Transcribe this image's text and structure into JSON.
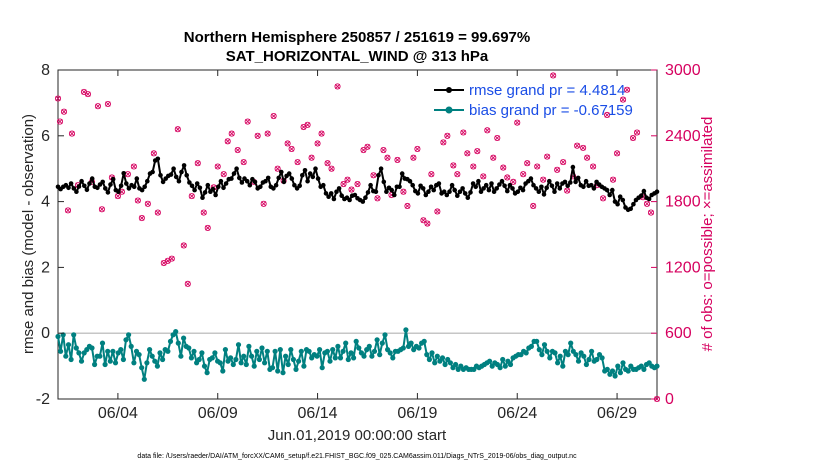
{
  "chart_data": {
    "type": "line",
    "title": "Northern Hemisphere 250857 / 251619 = 99.697%",
    "subtitle": "SAT_HORIZONTAL_WIND @ 313 hPa",
    "xlabel": "Jun.01,2019 00:00:00 start",
    "ylabel": "rmse and bias (model - observation)",
    "y2label": "# of obs: o=possible; ×=assimilated",
    "xlim": [
      1.0,
      31.0
    ],
    "ylim": [
      -2,
      8
    ],
    "y2lim": [
      0,
      3000
    ],
    "x_ticks": [
      {
        "value": 4,
        "label": "06/04"
      },
      {
        "value": 9,
        "label": "06/09"
      },
      {
        "value": 14,
        "label": "06/14"
      },
      {
        "value": 19,
        "label": "06/19"
      },
      {
        "value": 24,
        "label": "06/24"
      },
      {
        "value": 29,
        "label": "06/29"
      }
    ],
    "y_ticks": [
      -2,
      0,
      2,
      4,
      6,
      8
    ],
    "y2_ticks": [
      0,
      600,
      1200,
      1800,
      2400,
      3000
    ],
    "zero_line": 0,
    "legend_position": "top-right",
    "series": [
      {
        "name": "rmse grand pr = 4.4814",
        "axis": "left",
        "color": "#000000",
        "marker": "star",
        "values": [
          4.45,
          4.38,
          4.45,
          4.5,
          4.42,
          4.55,
          4.4,
          4.3,
          4.46,
          4.62,
          4.48,
          4.36,
          4.55,
          4.7,
          4.45,
          4.42,
          4.52,
          4.6,
          4.4,
          4.28,
          4.52,
          4.68,
          4.35,
          4.3,
          4.48,
          4.86,
          4.55,
          4.4,
          4.5,
          4.45,
          4.7,
          4.4,
          4.35,
          4.45,
          4.62,
          4.85,
          4.9,
          5.25,
          5.3,
          4.8,
          4.6,
          4.7,
          4.78,
          4.82,
          5.0,
          4.75,
          4.62,
          4.9,
          5.1,
          4.8,
          4.58,
          4.48,
          4.35,
          4.55,
          4.42,
          4.12,
          4.28,
          4.5,
          4.3,
          4.38,
          4.2,
          4.45,
          4.62,
          4.42,
          4.55,
          4.68,
          4.7,
          4.85,
          5.0,
          4.72,
          4.58,
          4.7,
          4.62,
          4.5,
          4.68,
          4.6,
          4.4,
          4.45,
          4.58,
          4.62,
          4.72,
          4.45,
          4.4,
          4.5,
          4.72,
          4.9,
          4.6,
          4.78,
          4.85,
          4.7,
          4.5,
          4.4,
          4.48,
          4.8,
          4.95,
          4.62,
          4.85,
          4.75,
          5.0,
          4.7,
          4.45,
          4.5,
          4.25,
          4.15,
          4.25,
          4.08,
          4.3,
          4.4,
          4.18,
          4.08,
          4.12,
          4.05,
          4.18,
          4.2,
          4.1,
          4.05,
          4.0,
          4.12,
          4.28,
          4.5,
          4.32,
          4.3,
          4.8,
          5.0,
          4.6,
          4.3,
          4.42,
          4.35,
          4.2,
          4.45,
          4.45,
          4.85,
          4.7,
          4.68,
          4.62,
          4.5,
          4.32,
          4.25,
          4.48,
          4.4,
          4.2,
          4.3,
          4.45,
          4.35,
          4.5,
          4.55,
          4.25,
          4.3,
          4.2,
          4.3,
          4.5,
          4.35,
          4.18,
          4.3,
          4.4,
          4.25,
          4.12,
          4.28,
          4.55,
          4.45,
          4.62,
          4.3,
          4.4,
          4.5,
          4.35,
          4.55,
          4.3,
          4.4,
          4.52,
          4.62,
          4.48,
          4.32,
          4.5,
          4.4,
          4.25,
          4.3,
          4.42,
          4.35,
          4.55,
          4.62,
          4.7,
          4.5,
          4.4,
          4.3,
          4.45,
          4.22,
          4.42,
          4.62,
          4.48,
          4.3,
          4.55,
          4.4,
          4.55,
          4.6,
          4.48,
          4.58,
          5.05,
          4.6,
          4.72,
          4.5,
          4.45,
          4.62,
          4.48,
          4.5,
          4.4,
          4.6,
          4.52,
          4.45,
          4.4,
          4.35,
          4.2,
          4.35,
          4.0,
          3.92,
          4.15,
          4.05,
          3.82,
          3.75,
          3.78,
          3.92,
          4.05,
          4.12,
          4.18,
          4.32,
          4.12,
          4.08,
          4.2,
          4.25,
          4.3
        ]
      },
      {
        "name": "bias grand pr = -0.67159",
        "axis": "left",
        "color": "#008080",
        "marker": "dot",
        "values": [
          -0.1,
          -0.55,
          -0.05,
          -0.7,
          -0.35,
          -0.8,
          -0.05,
          -0.45,
          -0.6,
          -0.85,
          -0.6,
          -0.5,
          -0.4,
          -0.45,
          -0.95,
          -0.7,
          -0.7,
          -0.3,
          -0.95,
          -0.55,
          -0.85,
          -0.55,
          -0.9,
          -0.6,
          -0.5,
          -0.8,
          -0.2,
          -0.05,
          -0.4,
          -0.9,
          -0.55,
          -0.65,
          -1.05,
          -1.4,
          -0.9,
          -0.5,
          -0.7,
          -0.85,
          -1.0,
          -0.6,
          -0.8,
          -0.5,
          -0.55,
          -0.25,
          -0.05,
          0.05,
          -0.3,
          -0.7,
          -0.15,
          -0.4,
          -0.45,
          -0.75,
          -0.55,
          -0.9,
          -0.8,
          -0.6,
          -1.0,
          -1.2,
          -0.8,
          -0.75,
          -0.6,
          -0.85,
          -0.9,
          -1.15,
          -0.5,
          -0.85,
          -0.75,
          -0.95,
          -0.8,
          -0.35,
          -0.9,
          -0.7,
          -0.95,
          -0.4,
          -0.7,
          -1.0,
          -0.55,
          -0.8,
          -0.45,
          -0.9,
          -0.55,
          -1.1,
          -1.05,
          -0.55,
          -1.15,
          -0.5,
          -1.2,
          -0.7,
          -0.95,
          -0.5,
          -0.8,
          -1.1,
          -0.85,
          -0.55,
          -1.0,
          -0.5,
          -0.55,
          -0.75,
          -0.65,
          -0.7,
          -0.5,
          -1.05,
          -0.6,
          -0.55,
          -0.85,
          -0.5,
          -0.75,
          -0.4,
          -0.75,
          -0.55,
          -0.3,
          -0.8,
          -0.6,
          -0.75,
          -0.25,
          -0.45,
          -0.6,
          -0.7,
          -0.5,
          -0.4,
          -0.7,
          -0.55,
          -0.2,
          -0.65,
          -0.3,
          -0.05,
          -0.5,
          -0.6,
          -0.75,
          -0.55,
          -0.55,
          -0.5,
          -0.45,
          0.1,
          -0.4,
          -0.3,
          -0.5,
          -0.4,
          -0.45,
          -0.3,
          -0.25,
          -0.65,
          -0.8,
          -0.6,
          -0.9,
          -0.7,
          -0.85,
          -0.75,
          -0.95,
          -0.8,
          -0.9,
          -1.05,
          -0.95,
          -1.1,
          -1.0,
          -1.1,
          -1.05,
          -1.1,
          -1.1,
          -1.1,
          -1.0,
          -1.05,
          -1.0,
          -0.95,
          -0.9,
          -0.85,
          -1.0,
          -0.9,
          -0.95,
          -1.05,
          -0.8,
          -1.0,
          -0.85,
          -0.95,
          -0.75,
          -0.7,
          -0.65,
          -0.65,
          -0.55,
          -0.6,
          -0.45,
          -0.4,
          -0.25,
          -0.25,
          -0.5,
          -0.65,
          -0.35,
          -0.55,
          -0.75,
          -0.55,
          -0.6,
          -0.9,
          -0.7,
          -1.0,
          -0.55,
          -0.65,
          -0.3,
          -0.55,
          -0.65,
          -0.85,
          -0.6,
          -0.7,
          -0.95,
          -0.8,
          -0.55,
          -0.85,
          -0.8,
          -0.65,
          -0.75,
          -1.15,
          -1.1,
          -1.25,
          -1.15,
          -1.3,
          -1.0,
          -1.2,
          -0.9,
          -1.1,
          -1.15,
          -1.0,
          -1.1,
          -1.1,
          -1.05,
          -1.0,
          -1.1,
          -0.95,
          -0.9,
          -1.0,
          -1.05,
          -1.0
        ]
      }
    ],
    "obs_counts": {
      "axis": "right",
      "color": "#d6005f",
      "possible": [
        [
          1.0,
          2740
        ],
        [
          1.1,
          2530
        ],
        [
          1.3,
          2620
        ],
        [
          1.5,
          1720
        ],
        [
          1.7,
          2420
        ],
        [
          2.0,
          1950
        ],
        [
          2.3,
          2800
        ],
        [
          2.5,
          2780
        ],
        [
          2.7,
          1980
        ],
        [
          3.0,
          2670
        ],
        [
          3.2,
          1730
        ],
        [
          3.5,
          2690
        ],
        [
          3.7,
          2020
        ],
        [
          4.0,
          1850
        ],
        [
          4.2,
          1890
        ],
        [
          4.5,
          2050
        ],
        [
          4.8,
          2120
        ],
        [
          5.0,
          1810
        ],
        [
          5.2,
          1650
        ],
        [
          5.5,
          1780
        ],
        [
          5.8,
          2240
        ],
        [
          6.0,
          1700
        ],
        [
          6.3,
          1240
        ],
        [
          6.5,
          1260
        ],
        [
          6.7,
          1280
        ],
        [
          7.0,
          2460
        ],
        [
          7.3,
          1400
        ],
        [
          7.5,
          1050
        ],
        [
          7.7,
          1850
        ],
        [
          8.0,
          2150
        ],
        [
          8.3,
          1700
        ],
        [
          8.5,
          1560
        ],
        [
          8.8,
          1930
        ],
        [
          9.0,
          2120
        ],
        [
          9.3,
          2050
        ],
        [
          9.5,
          2350
        ],
        [
          9.7,
          2420
        ],
        [
          10.0,
          2270
        ],
        [
          10.3,
          2160
        ],
        [
          10.5,
          2530
        ],
        [
          10.8,
          1980
        ],
        [
          11.0,
          2400
        ],
        [
          11.3,
          1780
        ],
        [
          11.5,
          2420
        ],
        [
          11.8,
          2580
        ],
        [
          12.0,
          2100
        ],
        [
          12.3,
          1990
        ],
        [
          12.5,
          2330
        ],
        [
          12.7,
          2280
        ],
        [
          13.0,
          2160
        ],
        [
          13.3,
          2480
        ],
        [
          13.5,
          2500
        ],
        [
          13.7,
          2200
        ],
        [
          14.0,
          2330
        ],
        [
          14.2,
          2420
        ],
        [
          14.5,
          2150
        ],
        [
          14.7,
          2100
        ],
        [
          15.0,
          2850
        ],
        [
          15.3,
          1960
        ],
        [
          15.5,
          2000
        ],
        [
          15.7,
          1910
        ],
        [
          16.0,
          1960
        ],
        [
          16.3,
          2270
        ],
        [
          16.5,
          2300
        ],
        [
          16.8,
          2040
        ],
        [
          17.0,
          1830
        ],
        [
          17.3,
          2270
        ],
        [
          17.5,
          2200
        ],
        [
          17.7,
          1860
        ],
        [
          18.0,
          2180
        ],
        [
          18.3,
          1890
        ],
        [
          18.5,
          1760
        ],
        [
          18.8,
          2200
        ],
        [
          19.0,
          2280
        ],
        [
          19.3,
          1630
        ],
        [
          19.5,
          1600
        ],
        [
          19.7,
          2050
        ],
        [
          20.0,
          1710
        ],
        [
          20.3,
          2340
        ],
        [
          20.5,
          2400
        ],
        [
          20.8,
          2130
        ],
        [
          21.0,
          2050
        ],
        [
          21.3,
          2430
        ],
        [
          21.5,
          2240
        ],
        [
          21.8,
          2120
        ],
        [
          22.0,
          2260
        ],
        [
          22.3,
          2030
        ],
        [
          22.5,
          2450
        ],
        [
          22.8,
          2200
        ],
        [
          23.0,
          2380
        ],
        [
          23.3,
          2110
        ],
        [
          23.5,
          2020
        ],
        [
          23.8,
          1980
        ],
        [
          24.0,
          2520
        ],
        [
          24.3,
          2050
        ],
        [
          24.5,
          2150
        ],
        [
          24.8,
          1760
        ],
        [
          25.0,
          2120
        ],
        [
          25.3,
          2000
        ],
        [
          25.5,
          2210
        ],
        [
          25.8,
          2950
        ],
        [
          26.0,
          2090
        ],
        [
          26.3,
          2160
        ],
        [
          26.5,
          1900
        ],
        [
          26.8,
          2030
        ],
        [
          27.0,
          2310
        ],
        [
          27.3,
          2290
        ],
        [
          27.5,
          2200
        ],
        [
          27.8,
          2120
        ],
        [
          28.0,
          1950
        ],
        [
          28.3,
          1830
        ],
        [
          28.5,
          2590
        ],
        [
          28.8,
          2000
        ],
        [
          29.0,
          2240
        ],
        [
          29.3,
          2730
        ],
        [
          29.5,
          2820
        ],
        [
          29.8,
          2380
        ],
        [
          30.0,
          2430
        ],
        [
          30.3,
          1840
        ],
        [
          30.5,
          1780
        ],
        [
          30.7,
          1700
        ],
        [
          31.0,
          0
        ]
      ]
    },
    "legend": [
      {
        "label": "rmse grand pr = 4.4814",
        "color": "#000000"
      },
      {
        "label": "bias grand pr = -0.67159",
        "color": "#008080"
      }
    ],
    "footnote": "data file: /Users/raeder/DAI/ATM_forcXX/CAM6_setup/f.e21.FHIST_BGC.f09_025.CAM6assim.011/Diags_NTrS_2019-06/obs_diag_output.nc"
  }
}
